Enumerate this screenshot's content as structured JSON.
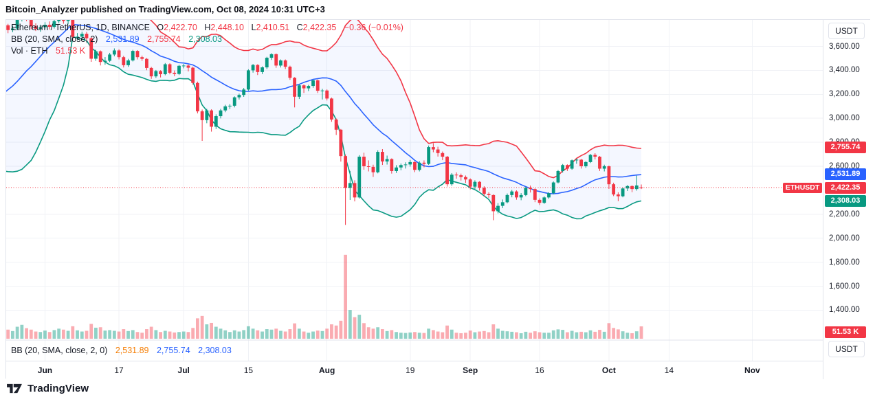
{
  "header": {
    "attribution_line": "Bitcoin_Analyzer published on TradingView.com, Oct 08, 2024 10:31 UTC+3"
  },
  "legend": {
    "symbol_title": "Ethereum / TetherUS, 1D, BINANCE",
    "ohlc": {
      "o_label": "O",
      "o": "2,422.70",
      "h_label": "H",
      "h": "2,448.10",
      "l_label": "L",
      "l": "2,410.51",
      "c_label": "C",
      "c": "2,422.35",
      "change": "−0.36 (−0.01%)"
    },
    "bb_main": {
      "title": "BB (20, SMA, close, 2)",
      "basis": "2,531.89",
      "upper": "2,755.74",
      "lower": "2,308.03"
    },
    "volume": {
      "title": "Vol · ETH",
      "value": "51.53 K"
    }
  },
  "bottom_pane_legend": {
    "title": "BB (20, SMA, close, 2, 0)",
    "basis": "2,531.89",
    "upper": "2,755.74",
    "lower": "2,308.03"
  },
  "symbol_label": {
    "text": "ETHUSDT"
  },
  "price_axis": {
    "currency_button_top": "USDT",
    "currency_button_bottom": "USDT",
    "ticks": [
      {
        "label": "3,600.00",
        "price": 3600
      },
      {
        "label": "3,400.00",
        "price": 3400
      },
      {
        "label": "3,200.00",
        "price": 3200
      },
      {
        "label": "3,000.00",
        "price": 3000
      },
      {
        "label": "2,800.00",
        "price": 2800
      },
      {
        "label": "2,600.00",
        "price": 2600
      },
      {
        "label": "2,200.00",
        "price": 2200
      },
      {
        "label": "2,000.00",
        "price": 2000
      },
      {
        "label": "1,800.00",
        "price": 1800
      },
      {
        "label": "1,600.00",
        "price": 1600
      },
      {
        "label": "1,400.00",
        "price": 1400
      }
    ],
    "badges": [
      {
        "label": "2,755.74",
        "price": 2755.74,
        "color": "#f23645"
      },
      {
        "label": "2,531.89",
        "price": 2531.89,
        "color": "#2962ff"
      },
      {
        "label": "2,422.35",
        "price": 2422.35,
        "color": "#f23645"
      },
      {
        "label": "2,308.03",
        "price": 2308.03,
        "color": "#089981"
      }
    ],
    "volume_badge": {
      "label": "51.53 K",
      "color": "#f23645"
    }
  },
  "footer": {
    "brand": "TradingView"
  },
  "chart_data": {
    "type": "candlestick",
    "symbol": "ETHUSDT",
    "exchange": "BINANCE",
    "interval": "1D",
    "start_date": "2024-05-23",
    "end_date": "2024-10-08",
    "current_price": 2422.35,
    "change": -0.36,
    "change_pct": -0.01,
    "colors": {
      "up": "#089981",
      "down": "#f23645",
      "vol_up": "rgba(8,153,129,0.45)",
      "vol_down": "rgba(242,54,69,0.42)",
      "bb_upper": "#f23645",
      "bb_basis": "#2962ff",
      "bb_lower": "#089981",
      "bb_fill": "rgba(41,98,255,0.05)",
      "grid": "#f0f2f6",
      "separator": "#e0e3eb",
      "price_line": "#f23645"
    },
    "bb": {
      "length": 20,
      "stdev_mult": 2,
      "basis_value": 2531.89,
      "upper_value": 2755.74,
      "lower_value": 2308.03,
      "prehistory_closes": [
        2970,
        3100,
        3135,
        3060,
        3010,
        2975,
        3040,
        2910,
        2885,
        2930,
        2950,
        3090,
        3035,
        3100,
        3065,
        3080,
        3740,
        3790,
        3740,
        3730
      ]
    },
    "volume_current_k": 51.53,
    "candles_format": [
      "open",
      "high",
      "low",
      "close",
      "volume_k"
    ],
    "candles": [
      [
        3800,
        3815,
        3752,
        3776,
        45
      ],
      [
        3776,
        3788,
        3710,
        3736,
        38
      ],
      [
        3736,
        3772,
        3718,
        3749,
        32
      ],
      [
        3749,
        3842,
        3735,
        3826,
        50
      ],
      [
        3826,
        3940,
        3808,
        3893,
        58
      ],
      [
        3893,
        3905,
        3810,
        3840,
        44
      ],
      [
        3840,
        3861,
        3742,
        3767,
        38
      ],
      [
        3767,
        3792,
        3728,
        3747,
        30
      ],
      [
        3747,
        3781,
        3722,
        3760,
        28
      ],
      [
        3760,
        3802,
        3744,
        3780,
        34
      ],
      [
        3780,
        3808,
        3741,
        3763,
        28
      ],
      [
        3763,
        3826,
        3749,
        3810,
        36
      ],
      [
        3810,
        3878,
        3794,
        3866,
        42
      ],
      [
        3866,
        3881,
        3789,
        3812,
        38
      ],
      [
        3812,
        3851,
        3784,
        3840,
        33
      ],
      [
        3840,
        3849,
        3651,
        3680,
        52
      ],
      [
        3680,
        3711,
        3652,
        3681,
        35
      ],
      [
        3681,
        3723,
        3659,
        3705,
        30
      ],
      [
        3705,
        3721,
        3639,
        3668,
        33
      ],
      [
        3668,
        3676,
        3471,
        3497,
        62
      ],
      [
        3497,
        3573,
        3479,
        3559,
        46
      ],
      [
        3559,
        3566,
        3441,
        3470,
        48
      ],
      [
        3470,
        3511,
        3447,
        3480,
        34
      ],
      [
        3480,
        3546,
        3469,
        3532,
        36
      ],
      [
        3532,
        3583,
        3517,
        3566,
        33
      ],
      [
        3566,
        3576,
        3491,
        3510,
        30
      ],
      [
        3510,
        3521,
        3424,
        3443,
        40
      ],
      [
        3443,
        3496,
        3429,
        3483,
        32
      ],
      [
        3483,
        3571,
        3474,
        3562,
        36
      ],
      [
        3562,
        3569,
        3491,
        3510,
        28
      ],
      [
        3510,
        3523,
        3479,
        3496,
        25
      ],
      [
        3496,
        3503,
        3401,
        3420,
        40
      ],
      [
        3420,
        3429,
        3329,
        3350,
        50
      ],
      [
        3350,
        3403,
        3337,
        3394,
        36
      ],
      [
        3394,
        3401,
        3341,
        3368,
        28
      ],
      [
        3368,
        3461,
        3359,
        3451,
        33
      ],
      [
        3451,
        3459,
        3367,
        3380,
        30
      ],
      [
        3380,
        3399,
        3351,
        3370,
        26
      ],
      [
        3370,
        3446,
        3361,
        3438,
        28
      ],
      [
        3438,
        3453,
        3417,
        3440,
        30
      ],
      [
        3440,
        3449,
        3391,
        3422,
        28
      ],
      [
        3422,
        3431,
        3281,
        3295,
        45
      ],
      [
        3295,
        3306,
        3041,
        3058,
        85
      ],
      [
        3058,
        3073,
        2812,
        2985,
        95
      ],
      [
        2985,
        3079,
        2959,
        3066,
        60
      ],
      [
        3066,
        3075,
        2889,
        2930,
        66
      ],
      [
        2930,
        3033,
        2911,
        3018,
        50
      ],
      [
        3018,
        3079,
        2999,
        3066,
        42
      ],
      [
        3066,
        3113,
        3051,
        3100,
        35
      ],
      [
        3100,
        3119,
        3077,
        3105,
        28
      ],
      [
        3105,
        3183,
        3091,
        3175,
        35
      ],
      [
        3175,
        3206,
        3157,
        3195,
        30
      ],
      [
        3195,
        3253,
        3179,
        3240,
        36
      ],
      [
        3240,
        3409,
        3231,
        3400,
        52
      ],
      [
        3400,
        3453,
        3381,
        3445,
        42
      ],
      [
        3445,
        3451,
        3361,
        3386,
        35
      ],
      [
        3386,
        3433,
        3369,
        3425,
        30
      ],
      [
        3425,
        3513,
        3411,
        3505,
        40
      ],
      [
        3505,
        3543,
        3487,
        3535,
        38
      ],
      [
        3535,
        3541,
        3421,
        3440,
        42
      ],
      [
        3440,
        3491,
        3424,
        3483,
        33
      ],
      [
        3483,
        3491,
        3411,
        3430,
        30
      ],
      [
        3430,
        3439,
        3321,
        3338,
        40
      ],
      [
        3338,
        3343,
        3091,
        3180,
        64
      ],
      [
        3180,
        3283,
        3161,
        3275,
        42
      ],
      [
        3275,
        3283,
        3211,
        3250,
        30
      ],
      [
        3250,
        3279,
        3227,
        3270,
        25
      ],
      [
        3270,
        3323,
        3254,
        3317,
        30
      ],
      [
        3317,
        3323,
        3211,
        3230,
        34
      ],
      [
        3230,
        3246,
        3157,
        3232,
        32
      ],
      [
        3232,
        3241,
        3149,
        3165,
        42
      ],
      [
        3165,
        3173,
        2971,
        2990,
        60
      ],
      [
        2990,
        2999,
        2861,
        2905,
        55
      ],
      [
        2905,
        2911,
        2639,
        2685,
        75
      ],
      [
        2685,
        2698,
        2111,
        2419,
        350
      ],
      [
        2419,
        2561,
        2319,
        2460,
        120
      ],
      [
        2460,
        2483,
        2307,
        2340,
        90
      ],
      [
        2340,
        2693,
        2331,
        2680,
        100
      ],
      [
        2680,
        2713,
        2571,
        2600,
        65
      ],
      [
        2600,
        2649,
        2557,
        2595,
        48
      ],
      [
        2595,
        2613,
        2511,
        2550,
        42
      ],
      [
        2550,
        2733,
        2541,
        2720,
        48
      ],
      [
        2720,
        2743,
        2611,
        2640,
        40
      ],
      [
        2640,
        2689,
        2614,
        2660,
        32
      ],
      [
        2660,
        2666,
        2539,
        2560,
        36
      ],
      [
        2560,
        2609,
        2544,
        2590,
        28
      ],
      [
        2590,
        2623,
        2567,
        2610,
        25
      ],
      [
        2610,
        2633,
        2581,
        2615,
        24
      ],
      [
        2615,
        2653,
        2597,
        2635,
        26
      ],
      [
        2635,
        2641,
        2551,
        2570,
        28
      ],
      [
        2570,
        2643,
        2557,
        2630,
        25
      ],
      [
        2630,
        2649,
        2591,
        2620,
        24
      ],
      [
        2620,
        2773,
        2611,
        2760,
        42
      ],
      [
        2760,
        2793,
        2717,
        2740,
        36
      ],
      [
        2740,
        2763,
        2681,
        2710,
        30
      ],
      [
        2710,
        2723,
        2651,
        2680,
        27
      ],
      [
        2680,
        2686,
        2431,
        2450,
        55
      ],
      [
        2450,
        2543,
        2437,
        2530,
        38
      ],
      [
        2530,
        2549,
        2497,
        2525,
        25
      ],
      [
        2525,
        2539,
        2481,
        2510,
        23
      ],
      [
        2510,
        2523,
        2461,
        2490,
        25
      ],
      [
        2490,
        2499,
        2407,
        2430,
        34
      ],
      [
        2430,
        2483,
        2411,
        2470,
        27
      ],
      [
        2470,
        2476,
        2397,
        2420,
        30
      ],
      [
        2420,
        2433,
        2347,
        2370,
        32
      ],
      [
        2370,
        2383,
        2337,
        2360,
        27
      ],
      [
        2360,
        2366,
        2150,
        2225,
        60
      ],
      [
        2225,
        2293,
        2207,
        2270,
        42
      ],
      [
        2270,
        2323,
        2251,
        2300,
        33
      ],
      [
        2300,
        2373,
        2291,
        2360,
        31
      ],
      [
        2360,
        2403,
        2341,
        2390,
        29
      ],
      [
        2390,
        2399,
        2321,
        2340,
        27
      ],
      [
        2340,
        2376,
        2317,
        2360,
        23
      ],
      [
        2360,
        2429,
        2351,
        2420,
        29
      ],
      [
        2420,
        2439,
        2381,
        2410,
        25
      ],
      [
        2410,
        2416,
        2301,
        2320,
        31
      ],
      [
        2320,
        2333,
        2277,
        2295,
        27
      ],
      [
        2295,
        2349,
        2287,
        2340,
        25
      ],
      [
        2340,
        2383,
        2329,
        2375,
        25
      ],
      [
        2375,
        2473,
        2367,
        2465,
        35
      ],
      [
        2465,
        2569,
        2457,
        2560,
        39
      ],
      [
        2560,
        2619,
        2547,
        2610,
        37
      ],
      [
        2610,
        2616,
        2561,
        2580,
        27
      ],
      [
        2580,
        2656,
        2571,
        2650,
        33
      ],
      [
        2650,
        2663,
        2621,
        2655,
        27
      ],
      [
        2655,
        2661,
        2581,
        2600,
        29
      ],
      [
        2600,
        2643,
        2587,
        2635,
        27
      ],
      [
        2635,
        2703,
        2627,
        2695,
        35
      ],
      [
        2695,
        2709,
        2657,
        2680,
        29
      ],
      [
        2680,
        2686,
        2561,
        2580,
        37
      ],
      [
        2580,
        2613,
        2557,
        2600,
        29
      ],
      [
        2600,
        2606,
        2411,
        2450,
        65
      ],
      [
        2450,
        2463,
        2351,
        2365,
        45
      ],
      [
        2365,
        2383,
        2309,
        2350,
        39
      ],
      [
        2350,
        2423,
        2341,
        2415,
        31
      ],
      [
        2415,
        2443,
        2394,
        2435,
        25
      ],
      [
        2435,
        2441,
        2384,
        2410,
        23
      ],
      [
        2410,
        2522,
        2397,
        2440,
        31
      ],
      [
        2422.7,
        2448.1,
        2410.51,
        2422.35,
        51.53
      ]
    ],
    "x_axis": {
      "ticks": [
        {
          "label": "Jun",
          "index": 9,
          "major": true
        },
        {
          "label": "17",
          "index": 25,
          "major": false
        },
        {
          "label": "Jul",
          "index": 39,
          "major": true
        },
        {
          "label": "15",
          "index": 53,
          "major": false
        },
        {
          "label": "Aug",
          "index": 70,
          "major": true
        },
        {
          "label": "19",
          "index": 88,
          "major": false
        },
        {
          "label": "Sep",
          "index": 101,
          "major": true
        },
        {
          "label": "16",
          "index": 116,
          "major": false
        },
        {
          "label": "Oct",
          "index": 131,
          "major": true
        },
        {
          "label": "14",
          "index": 144,
          "major": false
        },
        {
          "label": "Nov",
          "index": 162,
          "major": true
        }
      ]
    },
    "y_axis": {
      "currency": "USDT",
      "tick_step": 200,
      "visible_range": [
        1130,
        3808
      ]
    }
  }
}
